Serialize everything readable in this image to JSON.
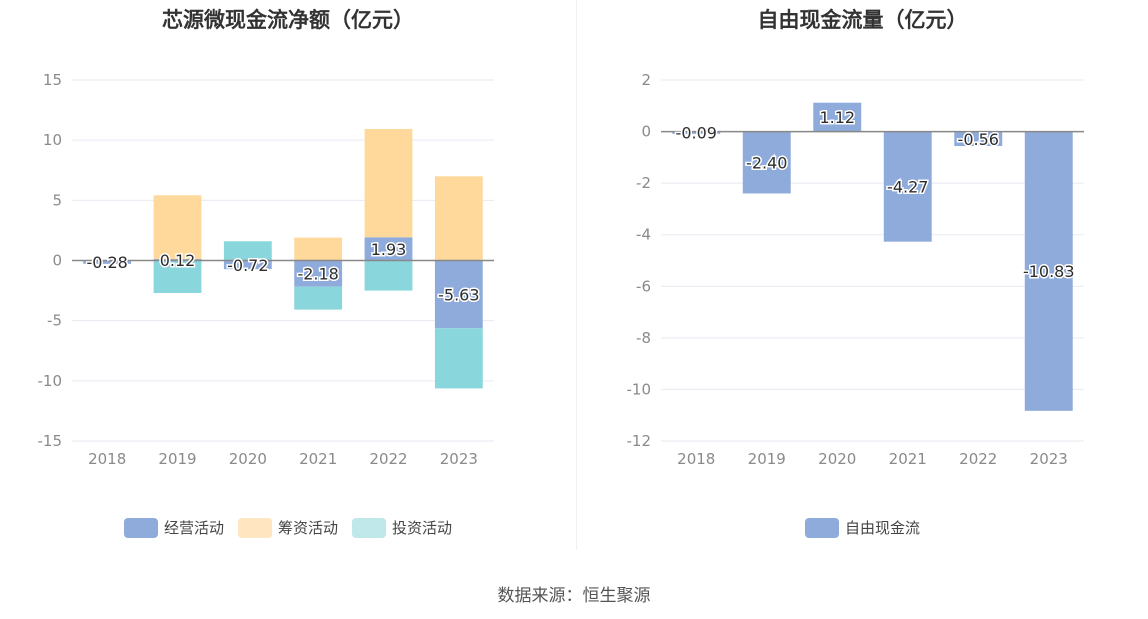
{
  "source_text": "数据来源：恒生聚源",
  "chart_data": [
    {
      "type": "bar",
      "stacked": true,
      "title": "芯源微现金流净额（亿元）",
      "categories": [
        "2018",
        "2019",
        "2020",
        "2021",
        "2022",
        "2023"
      ],
      "ylim": [
        -15,
        15
      ],
      "yticks": [
        15,
        10,
        5,
        0,
        -5,
        -10,
        -15
      ],
      "ytick_labels": [
        "15",
        "10",
        "5",
        "0",
        "-5",
        "-10",
        "-15"
      ],
      "grid": true,
      "legend_position": "bottom",
      "series": [
        {
          "name": "经营活动",
          "color": "#8eabdb",
          "values": [
            -0.28,
            0.12,
            -0.72,
            -2.18,
            1.93,
            -5.63
          ],
          "labels": [
            "-0.28",
            "0.12",
            "-0.72",
            "-2.18",
            "1.93",
            "-5.63"
          ]
        },
        {
          "name": "筹资活动",
          "color": "#ffd99b",
          "values": [
            0.0,
            5.3,
            0.0,
            1.9,
            9.0,
            7.0
          ]
        },
        {
          "name": "投资活动",
          "color": "#89d7dc",
          "values": [
            0.0,
            -2.7,
            1.6,
            -1.9,
            -2.5,
            -5.0
          ]
        }
      ],
      "legend_colors": [
        "#8eabdb",
        "#ffe6c1",
        "#c0e8ea"
      ]
    },
    {
      "type": "bar",
      "title": "自由现金流量（亿元）",
      "categories": [
        "2018",
        "2019",
        "2020",
        "2021",
        "2022",
        "2023"
      ],
      "ylim": [
        -12,
        2
      ],
      "yticks": [
        2,
        0,
        -2,
        -4,
        -6,
        -8,
        -10,
        -12
      ],
      "ytick_labels": [
        "2",
        "0",
        "-2",
        "-4",
        "-6",
        "-8",
        "-10",
        "-12"
      ],
      "grid": true,
      "legend_position": "bottom",
      "series": [
        {
          "name": "自由现金流",
          "color": "#8eabdb",
          "values": [
            -0.09,
            -2.4,
            1.12,
            -4.27,
            -0.56,
            -10.83
          ],
          "labels": [
            "-0.09",
            "-2.40",
            "1.12",
            "-4.27",
            "-0.56",
            "-10.83"
          ]
        }
      ],
      "legend_colors": [
        "#8eabdb"
      ]
    }
  ]
}
